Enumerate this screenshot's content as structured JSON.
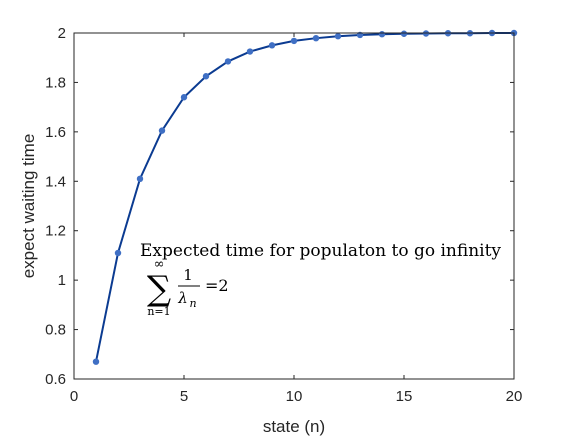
{
  "chart_data": {
    "type": "line",
    "xlabel": "state (n)",
    "ylabel": "expect waiting time",
    "xlim": [
      0,
      20
    ],
    "ylim": [
      0.6,
      2
    ],
    "xticks": [
      0,
      5,
      10,
      15,
      20
    ],
    "yticks": [
      0.6,
      0.8,
      1,
      1.2,
      1.4,
      1.6,
      1.8,
      2
    ],
    "ytick_labels": [
      "0.6",
      "0.8",
      "1",
      "1.2",
      "1.4",
      "1.6",
      "1.8",
      "2"
    ],
    "grid": false,
    "series": [
      {
        "x": [
          1,
          2,
          3,
          4,
          5,
          6,
          7,
          8,
          9,
          10,
          11,
          12,
          13,
          14,
          15,
          16,
          17,
          18,
          19,
          20
        ],
        "y": [
          0.67,
          1.11,
          1.41,
          1.605,
          1.74,
          1.825,
          1.885,
          1.925,
          1.95,
          1.968,
          1.979,
          1.987,
          1.992,
          1.995,
          1.997,
          1.998,
          1.999,
          1.999,
          2.0,
          2.0
        ],
        "color": "#0b3b91",
        "marker_color": "#3f6fc4"
      }
    ],
    "annotation": {
      "line1": "Expected time for populaton to go infinity",
      "sum_symbol": "∑",
      "sum_upper": "∞",
      "sum_lower": "n=1",
      "numerator": "1",
      "denominator_base": "λ",
      "denominator_sub": "n",
      "equals": "=2"
    }
  }
}
